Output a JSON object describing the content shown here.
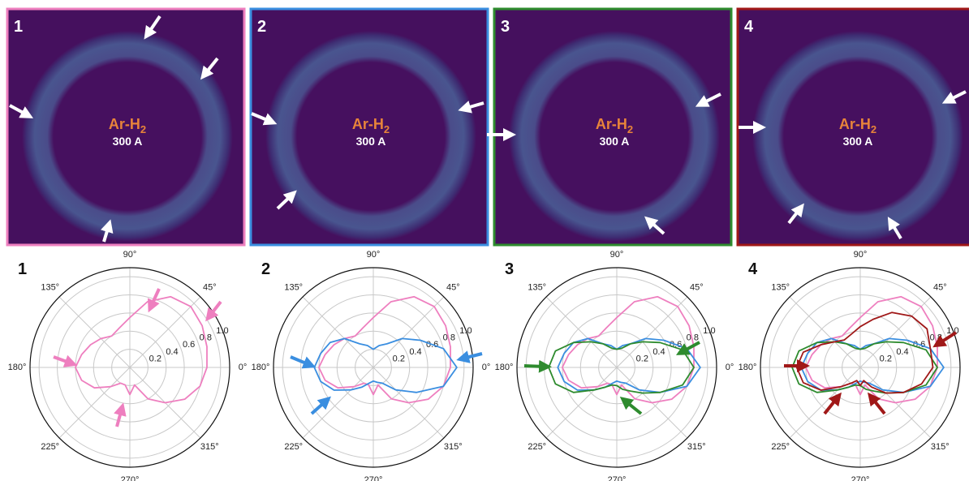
{
  "images": [
    {
      "label": "1",
      "gas": "Ar-H",
      "gas_subscript": "2",
      "current": "300 A"
    },
    {
      "label": "2",
      "gas": "Ar-H",
      "gas_subscript": "2",
      "current": "300 A"
    },
    {
      "label": "3",
      "gas": "Ar-H",
      "gas_subscript": "2",
      "current": "300 A"
    },
    {
      "label": "4",
      "gas": "Ar-H",
      "gas_subscript": "2",
      "current": "300 A"
    }
  ],
  "chart_data": [
    {
      "type": "polar",
      "label": "1",
      "rlim": [
        0,
        1.1
      ],
      "grid": true,
      "rticks": [
        0.2,
        0.4,
        0.6,
        0.8,
        {
          "value": 1,
          "label": "1.0"
        }
      ],
      "thetaticks": [
        {
          "value": 0,
          "label": "0°"
        },
        {
          "value": 45,
          "label": "45°"
        },
        {
          "value": 90,
          "label": "90°"
        },
        {
          "value": 135,
          "label": "135°"
        },
        {
          "value": 180,
          "label": "180°"
        },
        {
          "value": 225,
          "label": "225°"
        },
        {
          "value": 270,
          "label": "270°"
        },
        {
          "value": 315,
          "label": "315°"
        }
      ],
      "theta": [
        0,
        15,
        30,
        45,
        60,
        75,
        90,
        105,
        120,
        135,
        150,
        165,
        180,
        195,
        210,
        225,
        240,
        255,
        270,
        285,
        300,
        315,
        330,
        345
      ],
      "series": [
        {
          "color": "#ee7fbf",
          "values": [
            0.85,
            0.88,
            0.92,
            0.95,
            0.9,
            0.75,
            0.55,
            0.45,
            0.4,
            0.45,
            0.5,
            0.55,
            0.6,
            0.55,
            0.45,
            0.3,
            0.2,
            0.2,
            0.3,
            0.2,
            0.4,
            0.55,
            0.7,
            0.8
          ]
        }
      ]
    },
    {
      "type": "polar",
      "label": "2",
      "rlim": [
        0,
        1.1
      ],
      "grid": true,
      "rticks": [
        0.2,
        0.4,
        0.6,
        0.8,
        {
          "value": 1,
          "label": "1.0"
        }
      ],
      "thetaticks": [
        {
          "value": 0,
          "label": "0°"
        },
        {
          "value": 45,
          "label": "45°"
        },
        {
          "value": 90,
          "label": "90°"
        },
        {
          "value": 135,
          "label": "135°"
        },
        {
          "value": 180,
          "label": "180°"
        },
        {
          "value": 225,
          "label": "225°"
        },
        {
          "value": 270,
          "label": "270°"
        },
        {
          "value": 315,
          "label": "315°"
        }
      ],
      "theta": [
        0,
        15,
        30,
        45,
        60,
        75,
        90,
        105,
        120,
        135,
        150,
        165,
        180,
        195,
        210,
        225,
        240,
        255,
        270,
        285,
        300,
        315,
        330,
        345
      ],
      "series": [
        {
          "color": "#ee7fbf",
          "values": [
            0.85,
            0.88,
            0.92,
            0.95,
            0.9,
            0.75,
            0.55,
            0.45,
            0.4,
            0.45,
            0.5,
            0.55,
            0.6,
            0.55,
            0.45,
            0.3,
            0.2,
            0.2,
            0.3,
            0.2,
            0.4,
            0.55,
            0.7,
            0.8
          ]
        },
        {
          "color": "#3a8ee0",
          "values": [
            0.92,
            0.8,
            0.6,
            0.45,
            0.3,
            0.25,
            0.2,
            0.25,
            0.3,
            0.45,
            0.55,
            0.6,
            0.65,
            0.6,
            0.5,
            0.35,
            0.25,
            0.18,
            0.15,
            0.17,
            0.2,
            0.35,
            0.55,
            0.8
          ]
        }
      ]
    },
    {
      "type": "polar",
      "label": "3",
      "rlim": [
        0,
        1.1
      ],
      "grid": true,
      "rticks": [
        0.2,
        0.4,
        0.6,
        0.8,
        {
          "value": 1,
          "label": "1.0"
        }
      ],
      "thetaticks": [
        {
          "value": 0,
          "label": "0°"
        },
        {
          "value": 45,
          "label": "45°"
        },
        {
          "value": 90,
          "label": "90°"
        },
        {
          "value": 135,
          "label": "135°"
        },
        {
          "value": 180,
          "label": "180°"
        },
        {
          "value": 225,
          "label": "225°"
        },
        {
          "value": 270,
          "label": "270°"
        },
        {
          "value": 315,
          "label": "315°"
        }
      ],
      "theta": [
        0,
        15,
        30,
        45,
        60,
        75,
        90,
        105,
        120,
        135,
        150,
        165,
        180,
        195,
        210,
        225,
        240,
        255,
        270,
        285,
        300,
        315,
        330,
        345
      ],
      "series": [
        {
          "color": "#ee7fbf",
          "values": [
            0.85,
            0.88,
            0.92,
            0.95,
            0.9,
            0.75,
            0.55,
            0.45,
            0.4,
            0.45,
            0.5,
            0.55,
            0.6,
            0.55,
            0.45,
            0.3,
            0.2,
            0.2,
            0.3,
            0.2,
            0.4,
            0.55,
            0.7,
            0.8
          ]
        },
        {
          "color": "#3a8ee0",
          "values": [
            0.92,
            0.8,
            0.6,
            0.45,
            0.3,
            0.25,
            0.2,
            0.25,
            0.3,
            0.45,
            0.55,
            0.6,
            0.65,
            0.6,
            0.5,
            0.35,
            0.25,
            0.18,
            0.15,
            0.17,
            0.2,
            0.35,
            0.55,
            0.8
          ]
        },
        {
          "color": "#2e8b2e",
          "values": [
            0.85,
            0.75,
            0.55,
            0.4,
            0.3,
            0.22,
            0.2,
            0.22,
            0.3,
            0.4,
            0.55,
            0.7,
            0.75,
            0.7,
            0.55,
            0.35,
            0.25,
            0.2,
            0.2,
            0.25,
            0.3,
            0.4,
            0.55,
            0.75
          ]
        }
      ]
    },
    {
      "type": "polar",
      "label": "4",
      "rlim": [
        0,
        1.1
      ],
      "grid": true,
      "rticks": [
        0.2,
        0.4,
        0.6,
        0.8,
        {
          "value": 1,
          "label": "1.0"
        }
      ],
      "thetaticks": [
        {
          "value": 0,
          "label": "0°"
        },
        {
          "value": 45,
          "label": "45°"
        },
        {
          "value": 90,
          "label": "90°"
        },
        {
          "value": 135,
          "label": "135°"
        },
        {
          "value": 180,
          "label": "180°"
        },
        {
          "value": 225,
          "label": "225°"
        },
        {
          "value": 270,
          "label": "270°"
        },
        {
          "value": 315,
          "label": "315°"
        }
      ],
      "theta": [
        0,
        15,
        30,
        45,
        60,
        75,
        90,
        105,
        120,
        135,
        150,
        165,
        180,
        195,
        210,
        225,
        240,
        255,
        270,
        285,
        300,
        315,
        330,
        345
      ],
      "series": [
        {
          "color": "#ee7fbf",
          "values": [
            0.85,
            0.88,
            0.92,
            0.95,
            0.9,
            0.75,
            0.55,
            0.45,
            0.4,
            0.45,
            0.5,
            0.55,
            0.6,
            0.55,
            0.45,
            0.3,
            0.2,
            0.2,
            0.3,
            0.2,
            0.4,
            0.55,
            0.7,
            0.8
          ]
        },
        {
          "color": "#3a8ee0",
          "values": [
            0.92,
            0.8,
            0.6,
            0.45,
            0.3,
            0.25,
            0.2,
            0.25,
            0.3,
            0.45,
            0.55,
            0.6,
            0.65,
            0.6,
            0.5,
            0.35,
            0.25,
            0.18,
            0.15,
            0.17,
            0.2,
            0.35,
            0.55,
            0.8
          ]
        },
        {
          "color": "#2e8b2e",
          "values": [
            0.85,
            0.75,
            0.55,
            0.4,
            0.3,
            0.22,
            0.2,
            0.22,
            0.3,
            0.4,
            0.55,
            0.7,
            0.75,
            0.7,
            0.55,
            0.35,
            0.25,
            0.2,
            0.2,
            0.25,
            0.3,
            0.4,
            0.55,
            0.75
          ]
        },
        {
          "color": "#a01818",
          "values": [
            0.8,
            0.8,
            0.85,
            0.8,
            0.7,
            0.55,
            0.45,
            0.38,
            0.35,
            0.4,
            0.5,
            0.65,
            0.7,
            0.65,
            0.5,
            0.3,
            0.2,
            0.15,
            0.2,
            0.15,
            0.25,
            0.4,
            0.55,
            0.7
          ]
        }
      ]
    }
  ]
}
